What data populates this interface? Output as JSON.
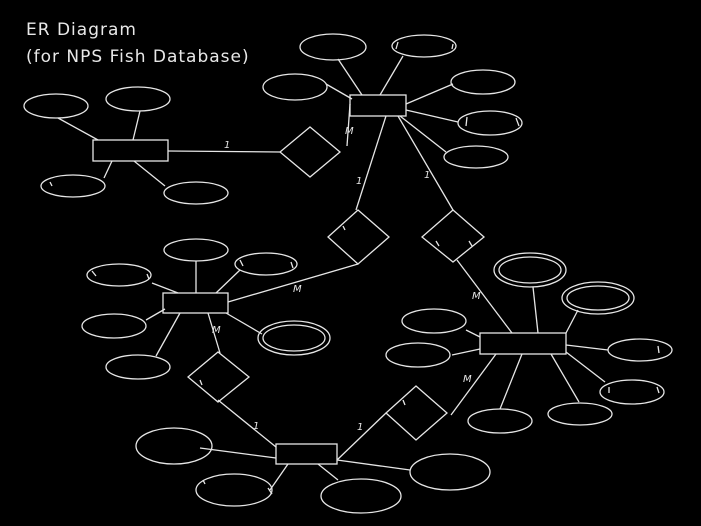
{
  "title": [
    "ER Diagram",
    "(for NPS Fish Database)"
  ],
  "diagram": {
    "entities": [
      "entity-top",
      "entity-left-top",
      "entity-left-mid",
      "entity-right-mid",
      "entity-bottom"
    ],
    "relationships": [
      {
        "id": "rel-a",
        "connects": [
          "entity-left-top",
          "entity-top"
        ],
        "cardinality": [
          "1",
          "M"
        ]
      },
      {
        "id": "rel-b",
        "connects": [
          "entity-top",
          "entity-left-mid"
        ],
        "cardinality": [
          "1",
          "M"
        ]
      },
      {
        "id": "rel-c",
        "connects": [
          "entity-top",
          "entity-right-mid"
        ],
        "cardinality": [
          "1",
          "M"
        ]
      },
      {
        "id": "rel-d",
        "connects": [
          "entity-left-mid",
          "entity-bottom"
        ],
        "cardinality": [
          "M",
          "1"
        ]
      },
      {
        "id": "rel-e",
        "connects": [
          "entity-bottom",
          "entity-right-mid"
        ],
        "cardinality": [
          "1",
          "M"
        ]
      }
    ]
  }
}
